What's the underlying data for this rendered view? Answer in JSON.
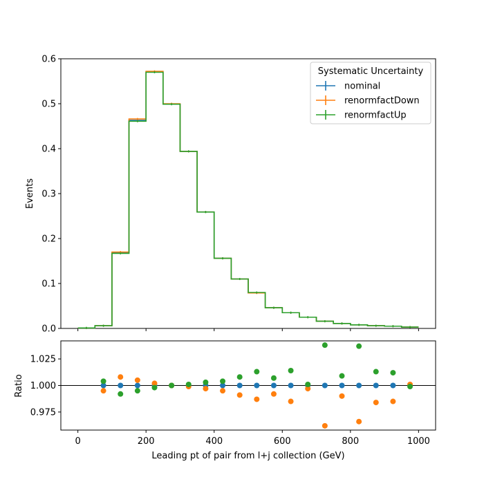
{
  "chart_data": {
    "type": "step",
    "xlabel": "Leading pt of pair from l+j collection (GeV)",
    "main": {
      "ylabel": "Events",
      "ylim": [
        0,
        0.6
      ],
      "yticks": [
        0.0,
        0.1,
        0.2,
        0.3,
        0.4,
        0.5,
        0.6
      ],
      "ytick_labels": [
        "0.0",
        "0.1",
        "0.2",
        "0.3",
        "0.4",
        "0.5",
        "0.6"
      ]
    },
    "ratio": {
      "ylabel": "Ratio",
      "ylim": [
        0.958,
        1.042
      ],
      "yticks": [
        0.975,
        1.0,
        1.025
      ],
      "ytick_labels": [
        "0.975",
        "1.000",
        "1.025"
      ],
      "reference_line": 1.0
    },
    "xlim": [
      -50,
      1050
    ],
    "xticks": [
      0,
      200,
      400,
      600,
      800,
      1000
    ],
    "xtick_labels": [
      "0",
      "200",
      "400",
      "600",
      "800",
      "1000"
    ],
    "bin_edges": [
      0,
      50,
      100,
      150,
      200,
      250,
      300,
      350,
      400,
      450,
      500,
      550,
      600,
      650,
      700,
      750,
      800,
      850,
      900,
      950,
      1000
    ],
    "legend": {
      "title": "Systematic Uncertainty",
      "placement": "upper right"
    },
    "series": [
      {
        "name": "nominal",
        "color": "#1f77b4",
        "values": [
          0.001,
          0.006,
          0.168,
          0.463,
          0.571,
          0.499,
          0.394,
          0.259,
          0.156,
          0.11,
          0.079,
          0.046,
          0.035,
          0.025,
          0.016,
          0.011,
          0.008,
          0.006,
          0.005,
          0.003
        ],
        "ratio": [
          null,
          1.0,
          1.0,
          1.0,
          1.0,
          1.0,
          1.0,
          1.0,
          1.0,
          1.0,
          1.0,
          1.0,
          1.0,
          1.0,
          1.0,
          1.0,
          1.0,
          1.0,
          1.0,
          1.0
        ]
      },
      {
        "name": "renormfactDown",
        "color": "#ff7f0e",
        "values": [
          0.001,
          0.006,
          0.17,
          0.466,
          0.572,
          0.5,
          0.394,
          0.259,
          0.156,
          0.11,
          0.079,
          0.046,
          0.035,
          0.025,
          0.016,
          0.011,
          0.008,
          0.006,
          0.005,
          0.003
        ],
        "ratio": [
          null,
          0.995,
          1.008,
          1.005,
          1.002,
          1.0,
          0.999,
          0.997,
          0.995,
          0.991,
          0.987,
          0.992,
          0.985,
          0.997,
          0.962,
          0.99,
          0.966,
          0.984,
          0.985,
          1.001
        ]
      },
      {
        "name": "renormfactUp",
        "color": "#2ca02c",
        "values": [
          0.001,
          0.006,
          0.167,
          0.461,
          0.57,
          0.499,
          0.394,
          0.259,
          0.156,
          0.11,
          0.08,
          0.046,
          0.035,
          0.025,
          0.016,
          0.011,
          0.008,
          0.006,
          0.005,
          0.003
        ],
        "ratio": [
          null,
          1.004,
          0.992,
          0.995,
          0.998,
          1.0,
          1.001,
          1.003,
          1.004,
          1.008,
          1.013,
          1.007,
          1.014,
          1.001,
          1.038,
          1.009,
          1.037,
          1.013,
          1.012,
          0.999
        ]
      }
    ]
  }
}
